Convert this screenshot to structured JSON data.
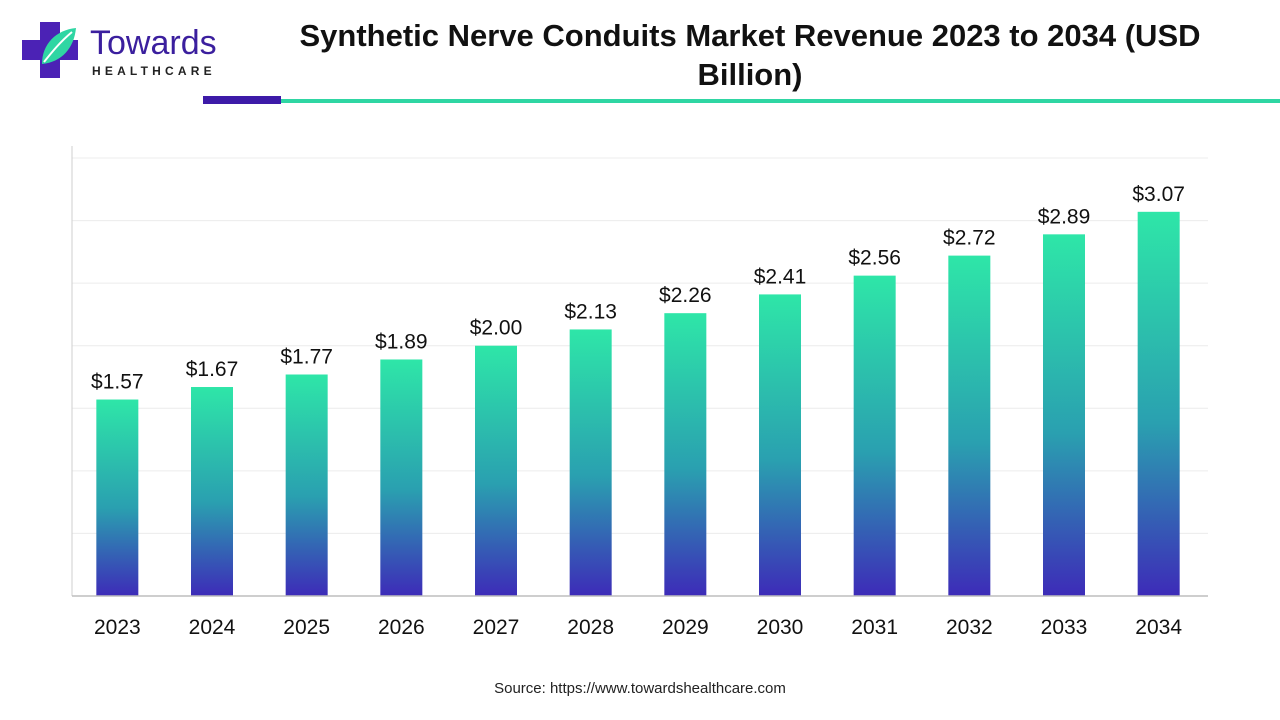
{
  "brand": {
    "name": "Towards",
    "sub": "HEALTHCARE"
  },
  "colors": {
    "bar_top": "#2ee6a8",
    "bar_mid": "#2aa0b0",
    "bar_bottom": "#3d2bb8",
    "accent_purple": "#3d1aa8",
    "accent_teal": "#2fd6a3"
  },
  "source": "Source: https://www.towardshealthcare.com",
  "chart_data": {
    "type": "bar",
    "title": "Synthetic Nerve Conduits Market Revenue 2023 to 2034 (USD Billion)",
    "xlabel": "",
    "ylabel": "",
    "categories": [
      "2023",
      "2024",
      "2025",
      "2026",
      "2027",
      "2028",
      "2029",
      "2030",
      "2031",
      "2032",
      "2033",
      "2034"
    ],
    "values": [
      1.57,
      1.67,
      1.77,
      1.89,
      2.0,
      2.13,
      2.26,
      2.41,
      2.56,
      2.72,
      2.89,
      3.07
    ],
    "labels": [
      "$1.57",
      "$1.67",
      "$1.77",
      "$1.89",
      "$2.00",
      "$2.13",
      "$2.26",
      "$2.41",
      "$2.56",
      "$2.72",
      "$2.89",
      "$3.07"
    ],
    "ylim": [
      0,
      3.5
    ],
    "grid": true,
    "legend": "none"
  }
}
